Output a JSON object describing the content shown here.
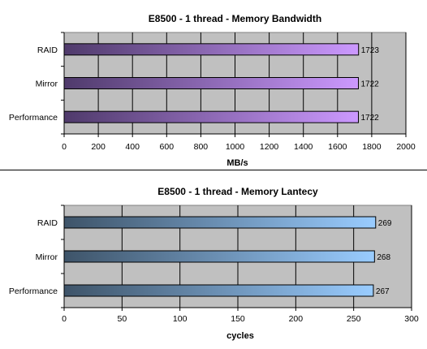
{
  "chart_data": [
    {
      "type": "bar",
      "orientation": "horizontal",
      "title": "E8500 - 1 thread - Memory Bandwidth",
      "xlabel": "MB/s",
      "ylabel": "",
      "categories": [
        "RAID",
        "Mirror",
        "Performance"
      ],
      "values": [
        1723,
        1722,
        1722
      ],
      "value_labels": [
        "1723",
        "1722",
        "1722"
      ],
      "xlim": [
        0,
        2000
      ],
      "ticks": [
        "0",
        "200",
        "400",
        "600",
        "800",
        "1000",
        "1200",
        "1400",
        "1600",
        "1800",
        "2000"
      ],
      "grid": true,
      "legend": "none",
      "colors": {
        "bar_start": "#4f3a6b",
        "bar_end": "#cc99ff",
        "plot_bg": "#c0c0c0"
      }
    },
    {
      "type": "bar",
      "orientation": "horizontal",
      "title": "E8500 - 1 thread - Memory Lantecy",
      "xlabel": "cycles",
      "ylabel": "",
      "categories": [
        "RAID",
        "Mirror",
        "Performance"
      ],
      "values": [
        269,
        268,
        267
      ],
      "value_labels": [
        "269",
        "268",
        "267"
      ],
      "xlim": [
        0,
        300
      ],
      "ticks": [
        "0",
        "50",
        "100",
        "150",
        "200",
        "250",
        "300"
      ],
      "grid": true,
      "legend": "none",
      "colors": {
        "bar_start": "#3e5469",
        "bar_end": "#99ccff",
        "plot_bg": "#c0c0c0"
      }
    }
  ]
}
